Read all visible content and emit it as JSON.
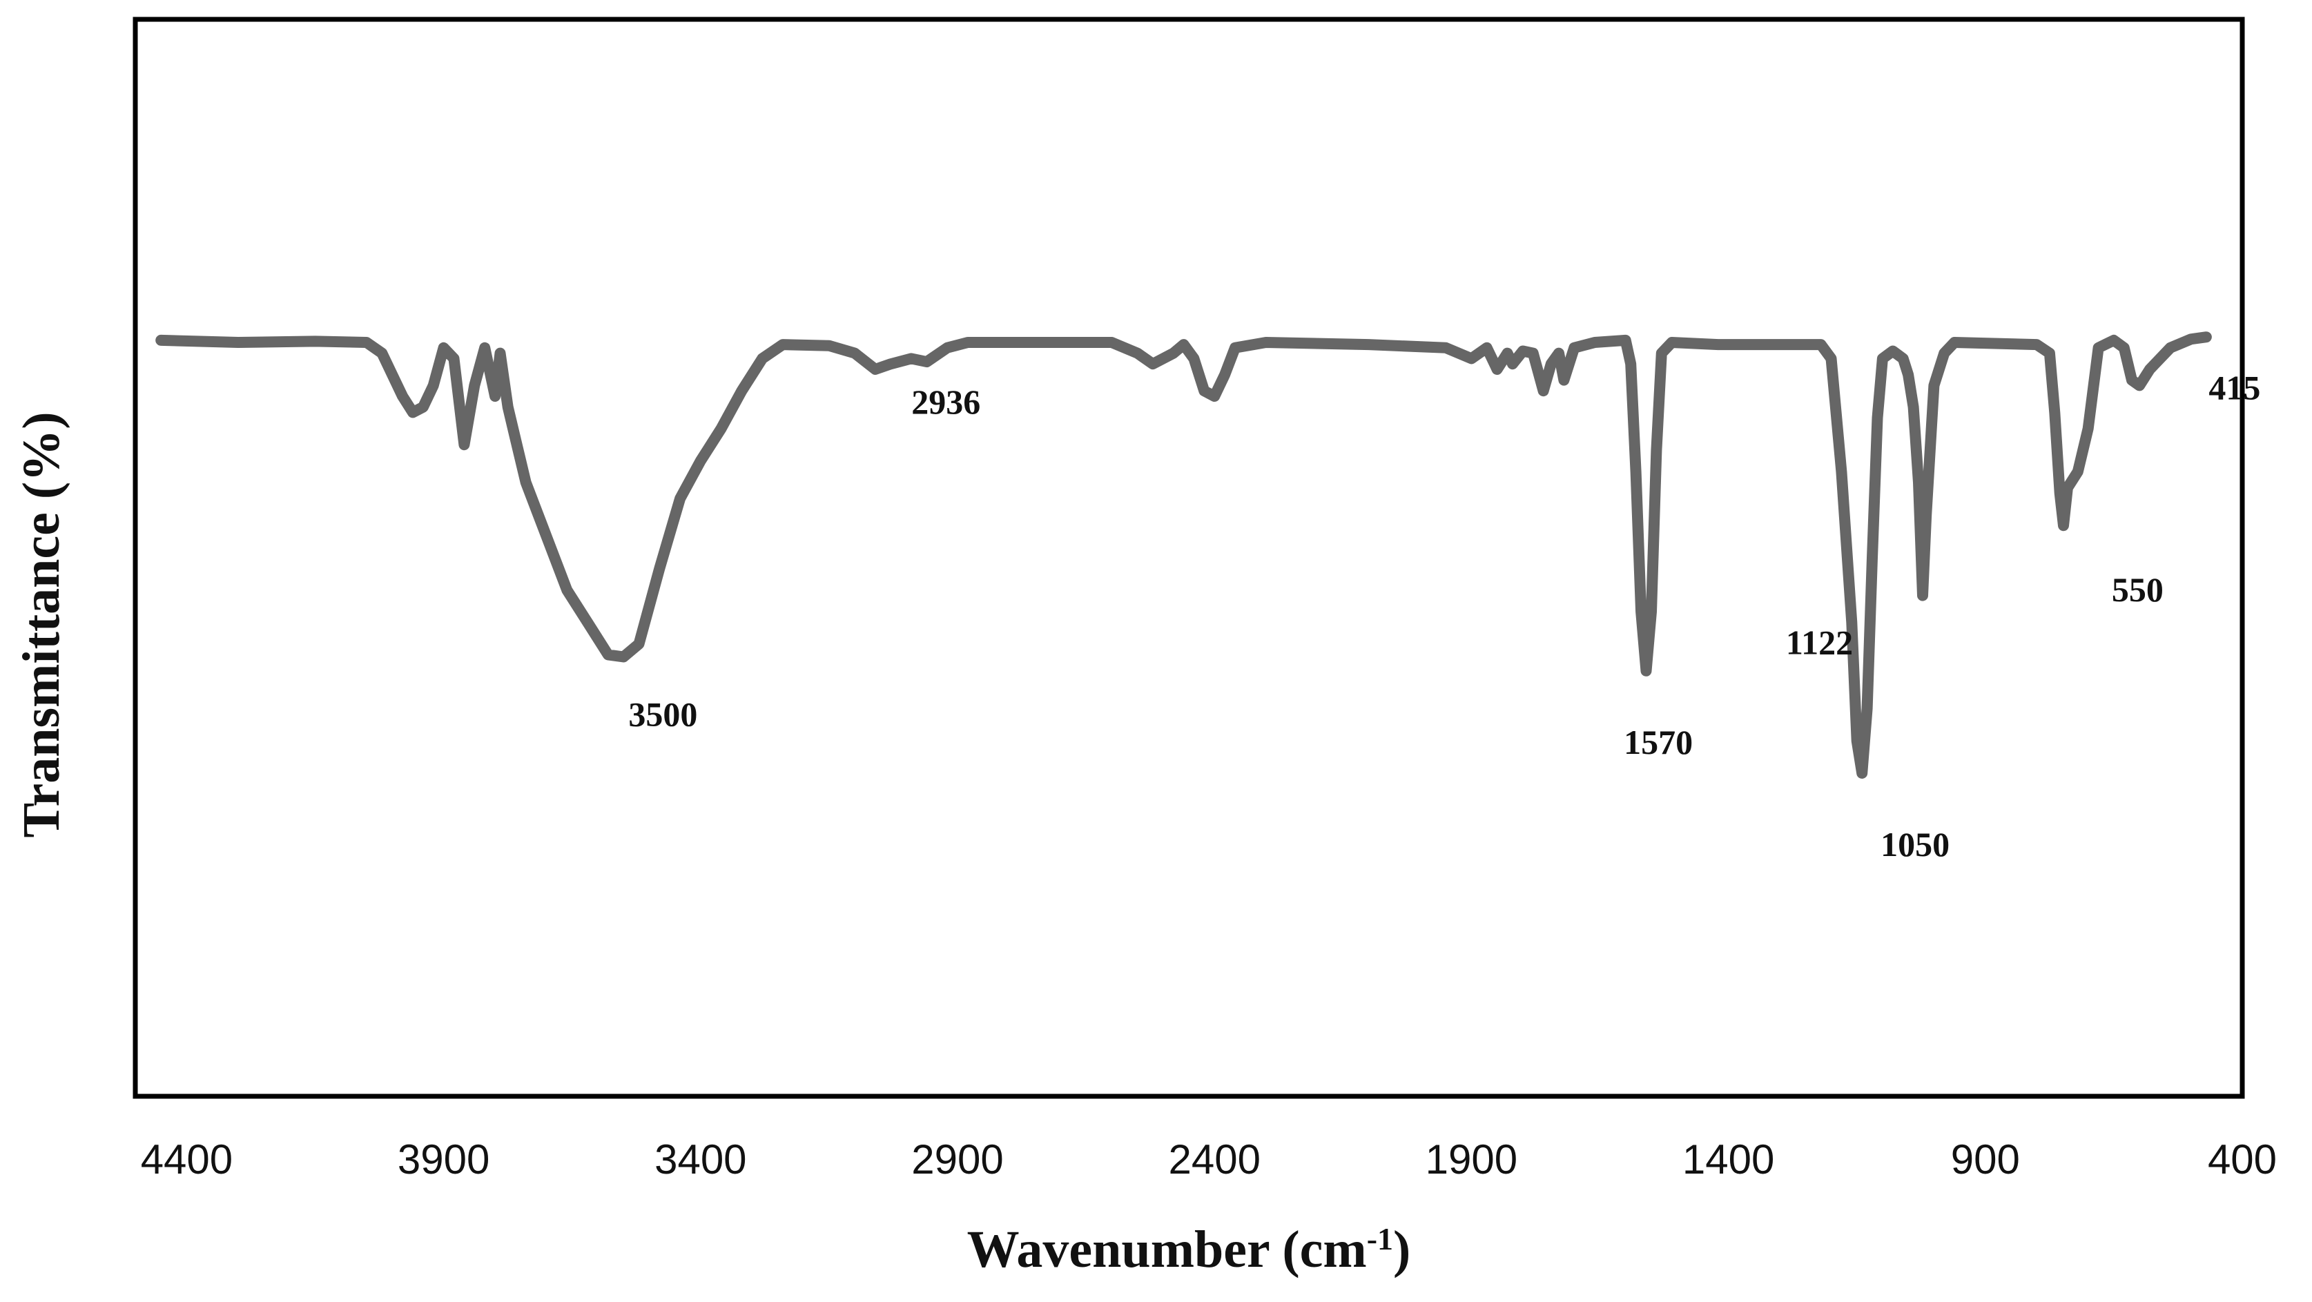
{
  "chart_data": {
    "type": "line",
    "title": "",
    "xlabel": "Wavenumber (cm",
    "xlabel_sup": "-1",
    "xlabel_end": ")",
    "ylabel": "Transmittance (%)",
    "xlim": [
      4500,
      400
    ],
    "ylim": [
      0,
      100
    ],
    "x_reversed": true,
    "grid": false,
    "legend": "none",
    "line_color": "#666666",
    "x_ticks": [
      4400,
      3900,
      3400,
      2900,
      2400,
      1900,
      1400,
      900,
      400
    ],
    "x_tick_labels": [
      "4400",
      "3900",
      "3400",
      "2900",
      "2400",
      "1900",
      "1400",
      "900",
      "400"
    ],
    "series": [
      {
        "values": [
          [
            4450,
            70.2
          ],
          [
            4300,
            70.0
          ],
          [
            4150,
            70.1
          ],
          [
            4050,
            70.0
          ],
          [
            4020,
            69.0
          ],
          [
            4000,
            67.0
          ],
          [
            3980,
            65.0
          ],
          [
            3960,
            63.5
          ],
          [
            3940,
            64.0
          ],
          [
            3920,
            66.0
          ],
          [
            3900,
            69.5
          ],
          [
            3880,
            68.5
          ],
          [
            3860,
            60.5
          ],
          [
            3840,
            66.0
          ],
          [
            3820,
            69.5
          ],
          [
            3800,
            65.0
          ],
          [
            3790,
            69.0
          ],
          [
            3775,
            64.0
          ],
          [
            3760,
            61.0
          ],
          [
            3740,
            57.0
          ],
          [
            3700,
            52.0
          ],
          [
            3660,
            47.0
          ],
          [
            3620,
            44.0
          ],
          [
            3580,
            41.0
          ],
          [
            3550,
            40.8
          ],
          [
            3520,
            42.0
          ],
          [
            3480,
            49.0
          ],
          [
            3440,
            55.5
          ],
          [
            3400,
            59.0
          ],
          [
            3360,
            62.0
          ],
          [
            3320,
            65.5
          ],
          [
            3280,
            68.5
          ],
          [
            3240,
            69.8
          ],
          [
            3150,
            69.7
          ],
          [
            3100,
            69.0
          ],
          [
            3060,
            67.5
          ],
          [
            3030,
            68.0
          ],
          [
            2990,
            68.5
          ],
          [
            2960,
            68.2
          ],
          [
            2920,
            69.5
          ],
          [
            2880,
            70.0
          ],
          [
            2600,
            70.0
          ],
          [
            2550,
            69.0
          ],
          [
            2520,
            68.0
          ],
          [
            2480,
            69.0
          ],
          [
            2460,
            69.8
          ],
          [
            2440,
            68.5
          ],
          [
            2420,
            65.5
          ],
          [
            2400,
            65.0
          ],
          [
            2380,
            67.0
          ],
          [
            2360,
            69.5
          ],
          [
            2300,
            70.0
          ],
          [
            2100,
            69.8
          ],
          [
            1950,
            69.5
          ],
          [
            1900,
            68.5
          ],
          [
            1870,
            69.5
          ],
          [
            1850,
            67.5
          ],
          [
            1830,
            69.0
          ],
          [
            1820,
            68.0
          ],
          [
            1800,
            69.2
          ],
          [
            1780,
            69.0
          ],
          [
            1760,
            65.5
          ],
          [
            1745,
            68.0
          ],
          [
            1730,
            69.0
          ],
          [
            1720,
            66.5
          ],
          [
            1700,
            69.5
          ],
          [
            1660,
            70.0
          ],
          [
            1600,
            70.2
          ],
          [
            1590,
            68.0
          ],
          [
            1580,
            58.0
          ],
          [
            1570,
            45.0
          ],
          [
            1560,
            39.5
          ],
          [
            1550,
            45.0
          ],
          [
            1540,
            60.0
          ],
          [
            1530,
            69.0
          ],
          [
            1510,
            70.0
          ],
          [
            1420,
            69.8
          ],
          [
            1300,
            69.8
          ],
          [
            1220,
            69.8
          ],
          [
            1200,
            68.5
          ],
          [
            1180,
            58.0
          ],
          [
            1160,
            44.0
          ],
          [
            1150,
            33.0
          ],
          [
            1140,
            30.0
          ],
          [
            1130,
            36.0
          ],
          [
            1120,
            50.0
          ],
          [
            1110,
            63.0
          ],
          [
            1100,
            68.5
          ],
          [
            1080,
            69.2
          ],
          [
            1060,
            68.5
          ],
          [
            1050,
            67.0
          ],
          [
            1040,
            64.0
          ],
          [
            1030,
            57.0
          ],
          [
            1022,
            46.5
          ],
          [
            1015,
            54.0
          ],
          [
            1000,
            66.0
          ],
          [
            980,
            69.0
          ],
          [
            960,
            70.0
          ],
          [
            800,
            69.8
          ],
          [
            775,
            69.0
          ],
          [
            765,
            63.5
          ],
          [
            755,
            56.0
          ],
          [
            748,
            53.0
          ],
          [
            740,
            56.5
          ],
          [
            720,
            58.0
          ],
          [
            700,
            62.0
          ],
          [
            680,
            69.5
          ],
          [
            650,
            70.2
          ],
          [
            630,
            69.5
          ],
          [
            615,
            66.5
          ],
          [
            600,
            66.0
          ],
          [
            580,
            67.5
          ],
          [
            560,
            68.5
          ],
          [
            540,
            69.5
          ],
          [
            500,
            70.3
          ],
          [
            470,
            70.5
          ]
        ]
      }
    ],
    "annotations": [
      {
        "text": "3500",
        "x": 3500,
        "y": 40.8
      },
      {
        "text": "2936",
        "x": 2936,
        "y": 68.2
      },
      {
        "text": "1570",
        "x": 1570,
        "y": 39.5
      },
      {
        "text": "1050",
        "x": 1050,
        "y": 30.0
      },
      {
        "text": "1122",
        "x": 1122,
        "y": 46.5
      },
      {
        "text": "550",
        "x": 550,
        "y": 53.0
      },
      {
        "text": "415",
        "x": 415,
        "y": 66.0
      }
    ]
  }
}
